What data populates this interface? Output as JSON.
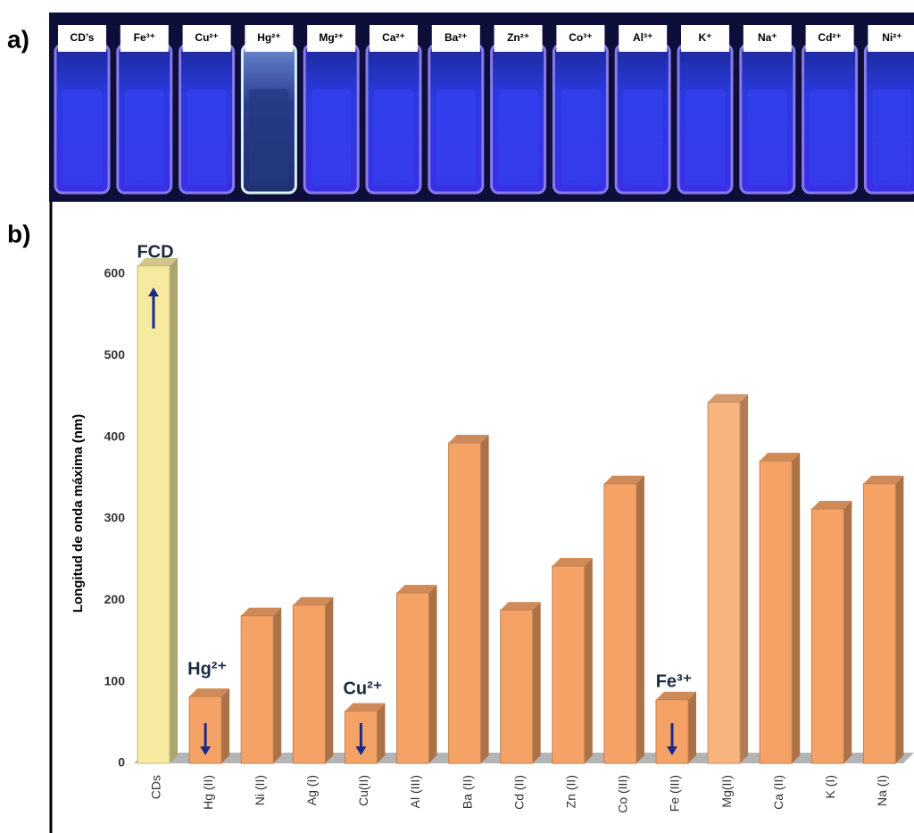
{
  "panel_labels": [
    "a)",
    "b)"
  ],
  "photo": {
    "labels": [
      "CD’s",
      "Fe³⁺",
      "Cu²⁺",
      "Hg²⁺",
      "Mg²⁺",
      "Ca²⁺",
      "Ba²⁺",
      "Zn²⁺",
      "Co³⁺",
      "Al³⁺",
      "K⁺",
      "Na⁺",
      "Cd²⁺",
      "Ni²⁺"
    ]
  },
  "chart_data": {
    "type": "bar3d",
    "ylabel": "Longitud de onda máxima (nm)",
    "categories": [
      "CDs",
      "Hg (II)",
      "Ni (II)",
      "Ag (I)",
      "Cu(II)",
      "Al (III)",
      "Ba (II)",
      "Cd (II)",
      "Zn (II)",
      "Co (III)",
      "Fe (III)",
      "Mg(II)",
      "Ca (II)",
      "K (I)",
      "Na (I)"
    ],
    "values": [
      610,
      82,
      181,
      194,
      64,
      209,
      393,
      188,
      242,
      343,
      78,
      443,
      371,
      312,
      343
    ],
    "colors": [
      "#f6eaa0",
      "#f4a266",
      "#f4a266",
      "#f4a266",
      "#f4a266",
      "#f4a266",
      "#f4a266",
      "#f4a266",
      "#f4a266",
      "#f4a266",
      "#f4a266",
      "#f8b47e",
      "#f4a266",
      "#f4a266",
      "#f4a266"
    ],
    "annotations": [
      "FCD",
      "Hg²⁺",
      "Cu²⁺",
      "Fe³⁺"
    ],
    "ylim": [
      0,
      600
    ],
    "yticks": [
      0,
      100,
      200,
      300,
      400,
      500,
      600
    ],
    "grid": false
  }
}
